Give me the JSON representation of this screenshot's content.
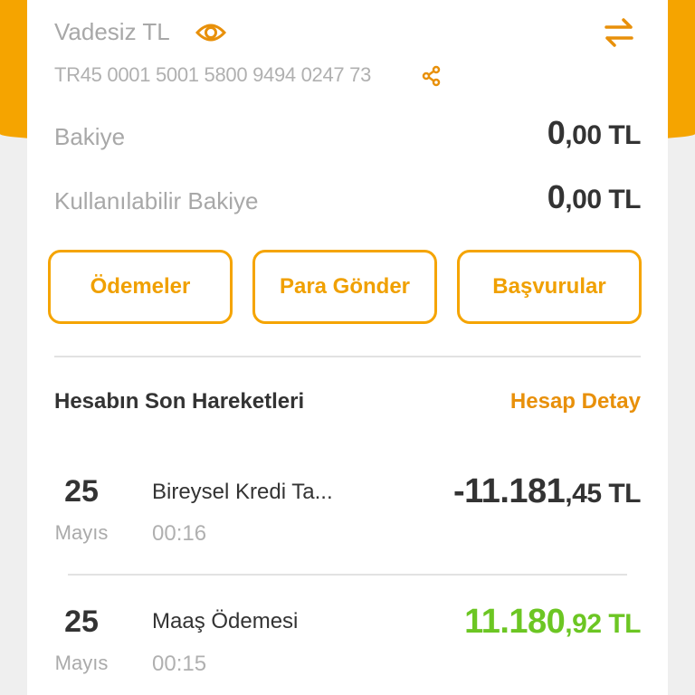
{
  "account": {
    "name": "Vadesiz TL",
    "iban": "TR45 0001 5001 5800 9494 0247 73",
    "balance_label": "Bakiye",
    "balance_int": "0",
    "balance_dec": ",00 TL",
    "available_label": "Kullanılabilir Bakiye",
    "available_int": "0",
    "available_dec": ",00 TL"
  },
  "actions": [
    "Ödemeler",
    "Para Gönder",
    "Başvurular"
  ],
  "transactions_section": {
    "title": "Hesabın Son Hareketleri",
    "detail_link": "Hesap Detay",
    "items": [
      {
        "day": "25",
        "month": "Mayıs",
        "description": "Bireysel Kredi Ta...",
        "time": "00:16",
        "amount_int": "-11.181",
        "amount_dec": ",45 TL",
        "color": "#333333"
      },
      {
        "day": "25",
        "month": "Mayıs",
        "description": "Maaş Ödemesi",
        "time": "00:15",
        "amount_int": "11.180",
        "amount_dec": ",92 TL",
        "color": "#6cc623"
      }
    ]
  },
  "colors": {
    "accent": "#f5a400",
    "positive": "#6cc623",
    "text": "#333333"
  },
  "icons": [
    "eye-icon",
    "swap-arrows-icon",
    "share-icon"
  ]
}
